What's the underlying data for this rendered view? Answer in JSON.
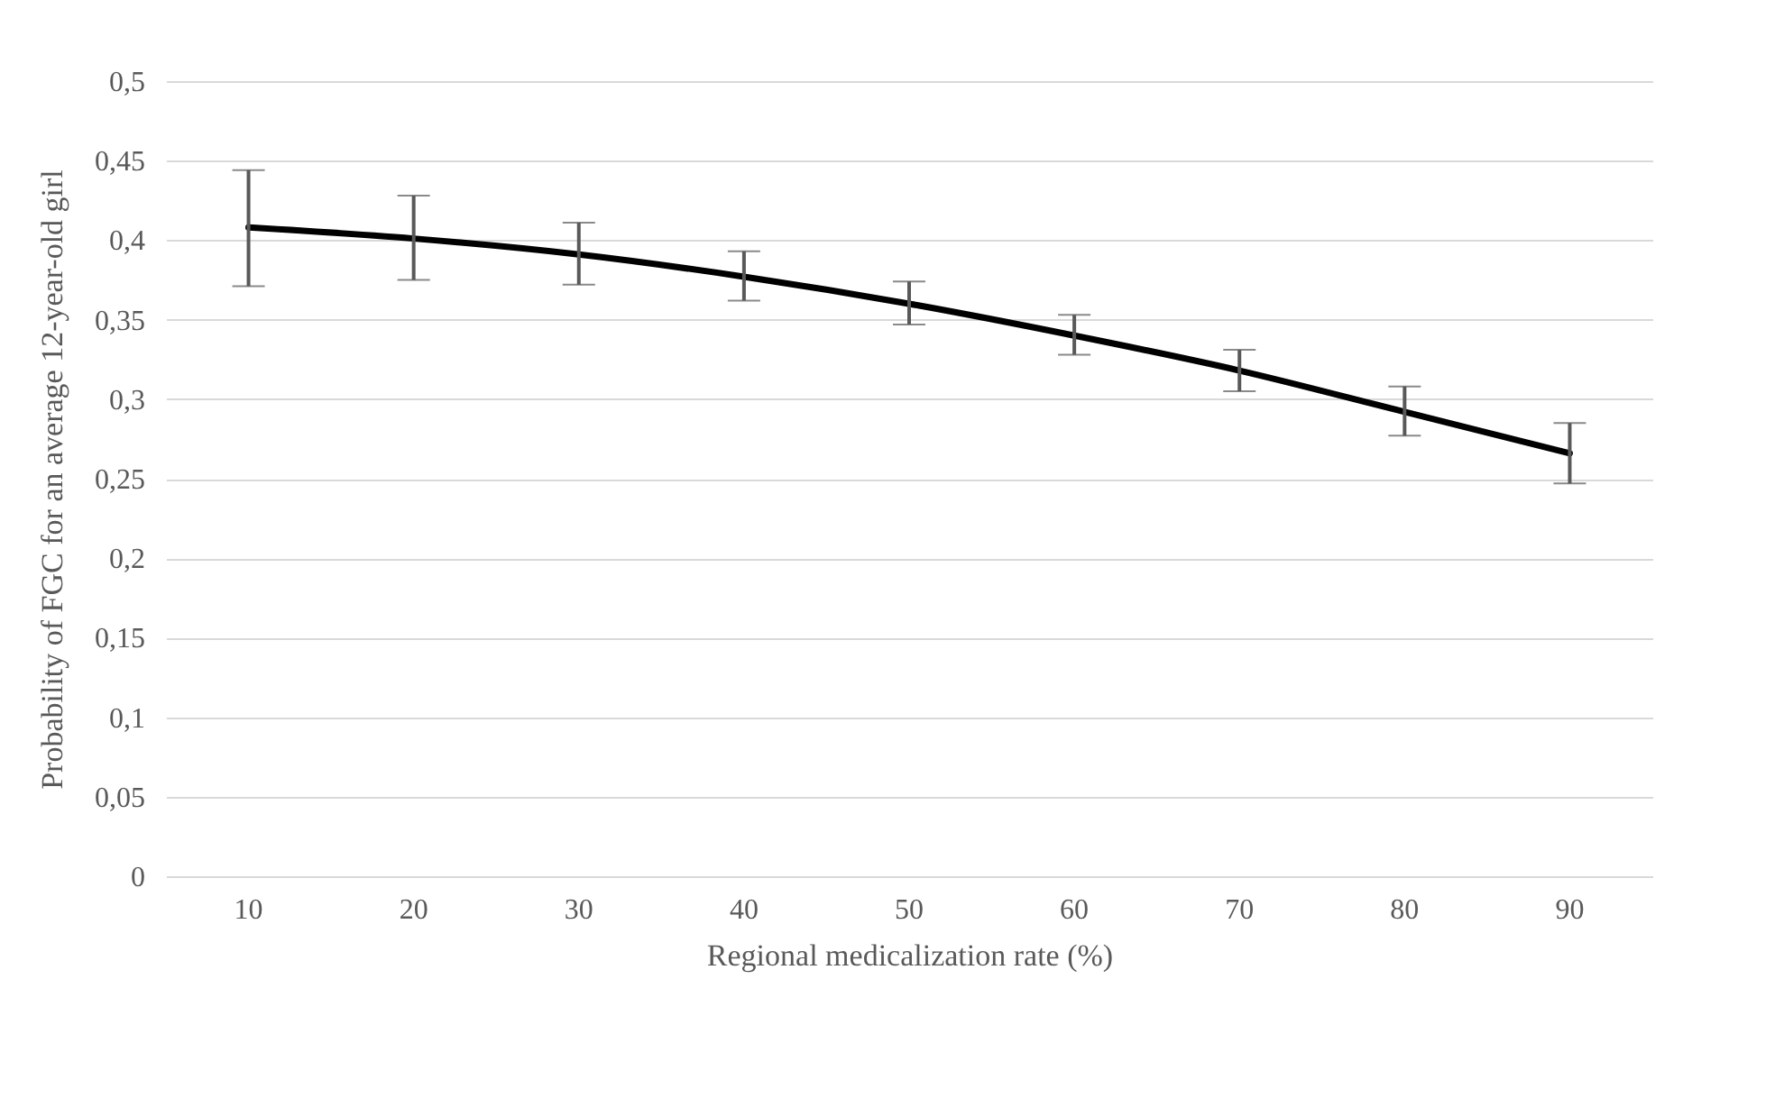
{
  "chart_data": {
    "type": "line",
    "xlabel": "Regional medicalization rate (%)",
    "ylabel": "Probability of FGC for an average 12-year-old girl",
    "categories": [
      "10",
      "20",
      "30",
      "40",
      "50",
      "60",
      "70",
      "80",
      "90"
    ],
    "series": [
      {
        "color": "#000000",
        "values": [
          0.408,
          0.401,
          0.391,
          0.377,
          0.36,
          0.34,
          0.318,
          0.292,
          0.266
        ],
        "errors": [
          [
            0.371,
            0.444
          ],
          [
            0.375,
            0.428
          ],
          [
            0.372,
            0.411
          ],
          [
            0.362,
            0.393
          ],
          [
            0.347,
            0.374
          ],
          [
            0.328,
            0.353
          ],
          [
            0.305,
            0.331
          ],
          [
            0.277,
            0.308
          ],
          [
            0.247,
            0.285
          ]
        ]
      }
    ],
    "ylim": [
      0,
      0.5
    ],
    "yticks": [
      0,
      {
        "value": 0.05,
        "label": "0,05"
      },
      {
        "value": 0.1,
        "label": "0,1"
      },
      {
        "value": 0.15,
        "label": "0,15"
      },
      {
        "value": 0.2,
        "label": "0,2"
      },
      {
        "value": 0.25,
        "label": "0,25"
      },
      {
        "value": 0.3,
        "label": "0,3"
      },
      {
        "value": 0.35,
        "label": "0,35"
      },
      {
        "value": 0.4,
        "label": "0,4"
      },
      {
        "value": 0.45,
        "label": "0,45"
      },
      {
        "value": 0.5,
        "label": "0,5"
      }
    ],
    "grid": "y",
    "marker": "none",
    "line_style": "solid"
  }
}
